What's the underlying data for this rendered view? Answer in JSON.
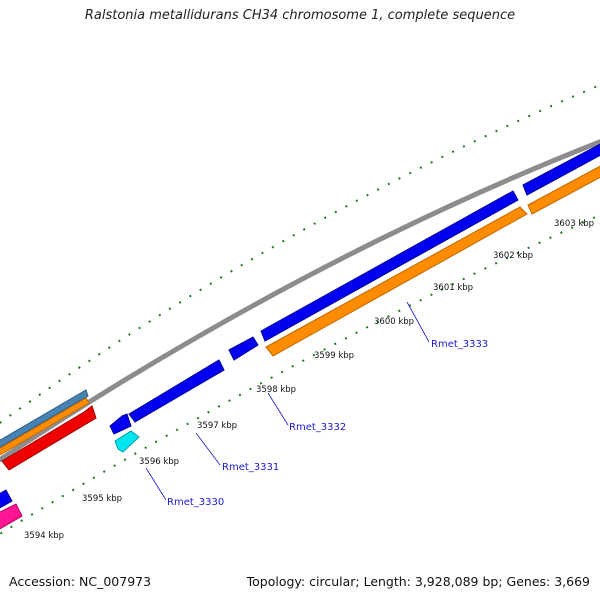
{
  "title": "Ralstonia metallidurans CH34 chromosome 1, complete sequence",
  "footer": {
    "accession": "Accession: NC_007973",
    "summary": "Topology: circular; Length: 3,928,089 bp; Genes: 3,669"
  },
  "kbp_ticks": [
    "3594 kbp",
    "3595 kbp",
    "3596 kbp",
    "3597 kbp",
    "3598 kbp",
    "3599 kbp",
    "3600 kbp",
    "3601 kbp",
    "3602 kbp",
    "3603 kbp"
  ],
  "gene_labels": [
    "Rmet_3330",
    "Rmet_3331",
    "Rmet_3332",
    "Rmet_3333"
  ],
  "colors": {
    "backbone": "#8c8c8c",
    "gene_forward": "#0000ee",
    "gene_reverse": "#ff8c00",
    "tick": "#1f7a1f",
    "label": "#1a1acc",
    "cds_red": "#ee0000",
    "steelblue": "#4682b4",
    "cyan": "#00e5ee",
    "pink": "#ff1493"
  }
}
